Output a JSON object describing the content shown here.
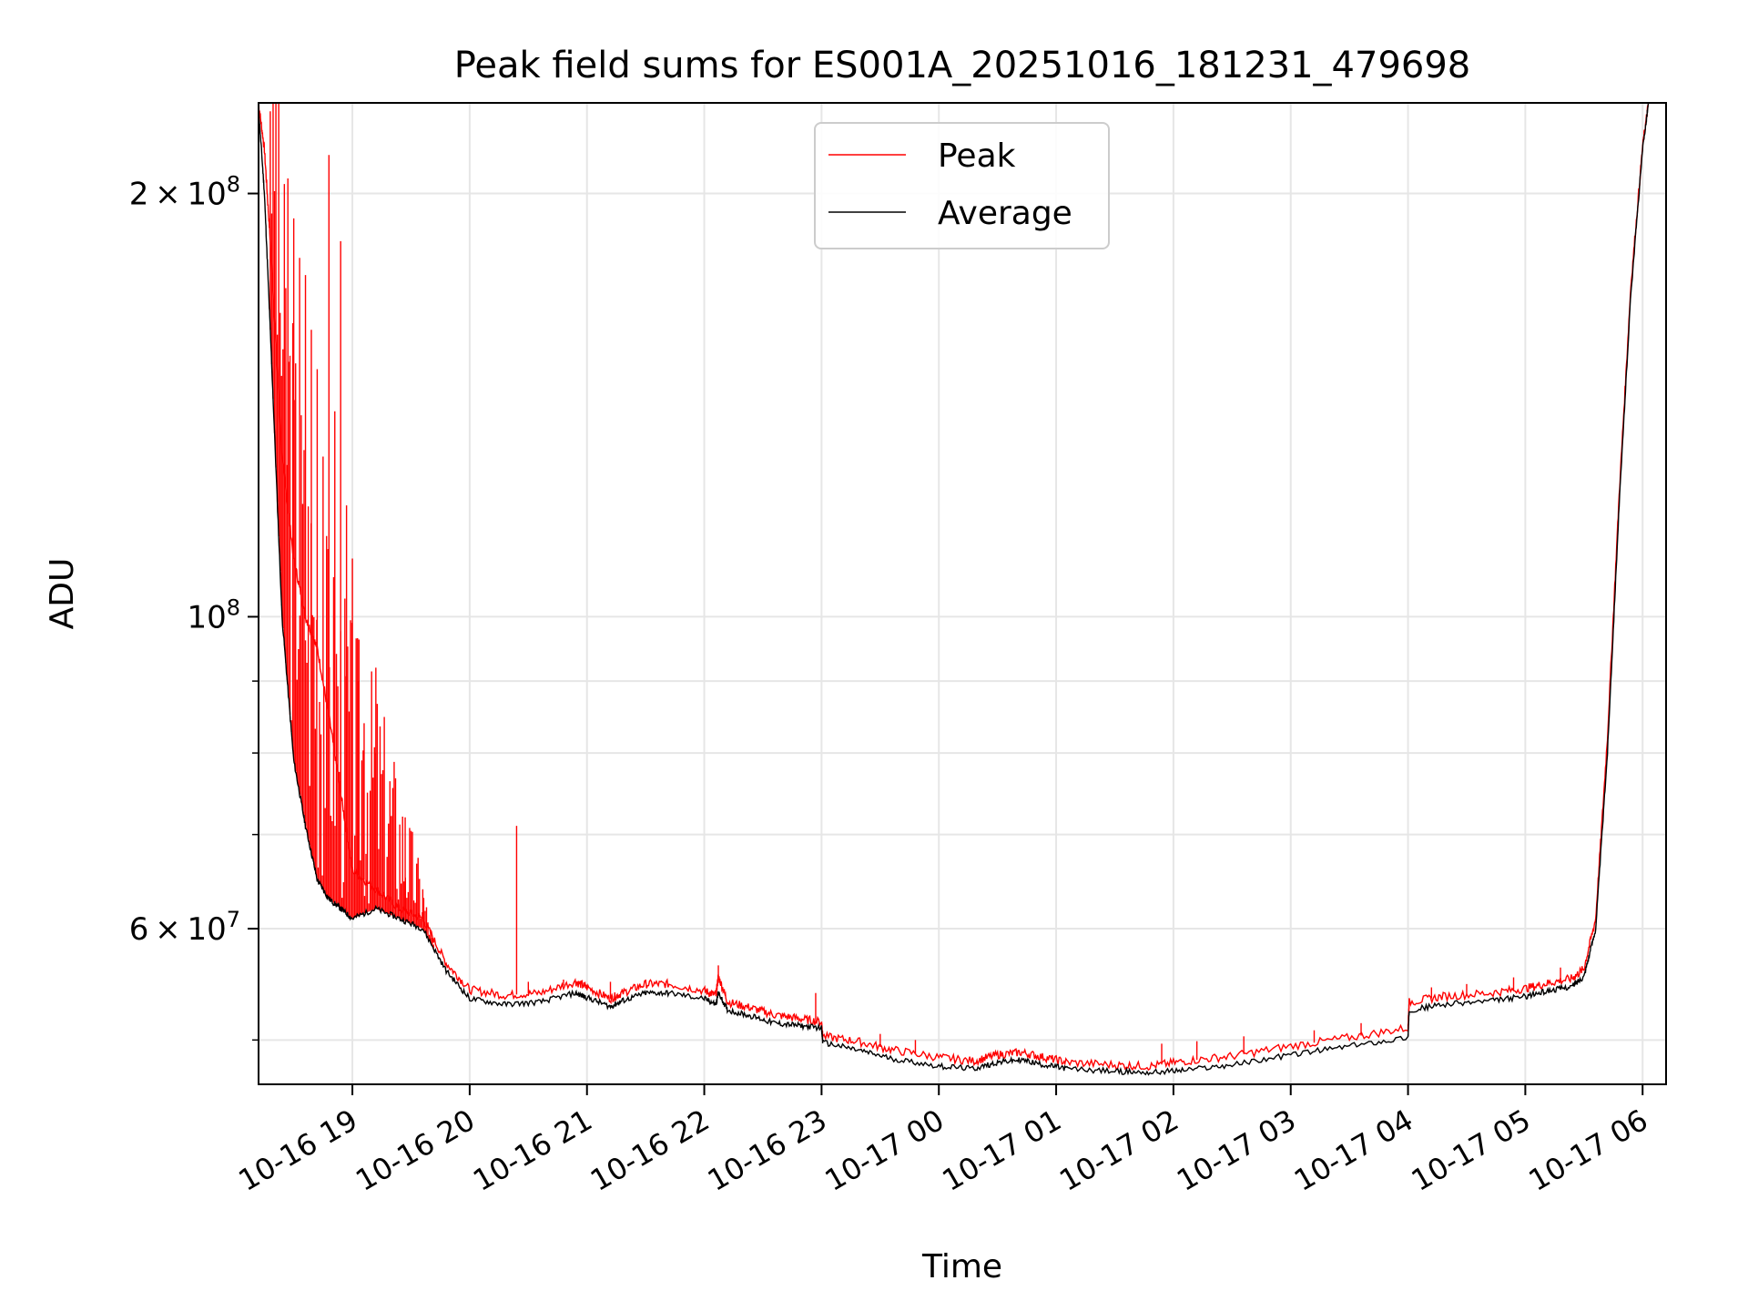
{
  "chart_data": {
    "type": "line",
    "title": "Peak field sums for ES001A_20251016_181231_479698",
    "xlabel": "Time",
    "ylabel": "ADU",
    "yscale": "log",
    "ylim": [
      46500000,
      232000000
    ],
    "xlim_hours": [
      18.2,
      30.2
    ],
    "x_ticks": [
      {
        "value": 19,
        "label": "10-16 19"
      },
      {
        "value": 20,
        "label": "10-16 20"
      },
      {
        "value": 21,
        "label": "10-16 21"
      },
      {
        "value": 22,
        "label": "10-16 22"
      },
      {
        "value": 23,
        "label": "10-16 23"
      },
      {
        "value": 24,
        "label": "10-17 00"
      },
      {
        "value": 25,
        "label": "10-17 01"
      },
      {
        "value": 26,
        "label": "10-17 02"
      },
      {
        "value": 27,
        "label": "10-17 03"
      },
      {
        "value": 28,
        "label": "10-17 04"
      },
      {
        "value": 29,
        "label": "10-17 05"
      },
      {
        "value": 30,
        "label": "10-17 06"
      }
    ],
    "y_major_ticks": [
      {
        "value": 200000000,
        "mantissa": "2",
        "base": "10",
        "exp": "8"
      },
      {
        "value": 100000000,
        "mantissa": "",
        "base": "10",
        "exp": "8"
      },
      {
        "value": 60000000,
        "mantissa": "6",
        "base": "10",
        "exp": "7"
      }
    ],
    "y_minor_grid": [
      50000000,
      70000000,
      80000000,
      90000000
    ],
    "legend": {
      "position": "upper-center",
      "entries": [
        "Peak",
        "Average"
      ]
    },
    "series": [
      {
        "name": "Average",
        "color": "#000000",
        "x": [
          18.2,
          18.25,
          18.3,
          18.4,
          18.5,
          18.6,
          18.7,
          18.8,
          18.9,
          19.0,
          19.2,
          19.4,
          19.6,
          19.8,
          20.0,
          20.3,
          20.6,
          20.9,
          21.0,
          21.2,
          21.3,
          21.5,
          21.7,
          22.0,
          22.1,
          22.12,
          22.2,
          22.4,
          22.6,
          22.8,
          23.0,
          23.01,
          23.3,
          23.6,
          24.0,
          24.3,
          24.5,
          24.7,
          24.9,
          25.1,
          25.5,
          25.8,
          26.1,
          26.5,
          27.0,
          27.5,
          28.0,
          28.01,
          28.3,
          28.7,
          29.0,
          29.2,
          29.4,
          29.5,
          29.6,
          29.7,
          29.8,
          29.9,
          30.0,
          30.05
        ],
        "values": [
          230000000,
          200000000,
          160000000,
          100000000,
          79000000,
          71000000,
          65000000,
          63000000,
          62000000,
          61000000,
          62000000,
          61000000,
          60000000,
          56000000,
          53500000,
          53000000,
          53200000,
          54000000,
          53600000,
          52800000,
          53300000,
          54000000,
          54000000,
          53500000,
          53000000,
          54000000,
          52500000,
          52000000,
          51400000,
          51200000,
          51000000,
          49800000,
          49200000,
          48500000,
          47900000,
          47700000,
          48200000,
          48400000,
          48000000,
          47700000,
          47500000,
          47400000,
          47600000,
          48000000,
          48800000,
          49500000,
          50200000,
          52500000,
          53000000,
          53300000,
          53700000,
          54200000,
          54600000,
          55500000,
          60000000,
          80000000,
          120000000,
          170000000,
          215000000,
          232000000
        ]
      },
      {
        "name": "Peak",
        "color": "#ff0000",
        "x": [
          18.2,
          18.25,
          18.3,
          18.4,
          18.5,
          18.6,
          18.7,
          18.8,
          18.9,
          19.0,
          19.2,
          19.4,
          19.6,
          19.8,
          20.0,
          20.3,
          20.6,
          20.9,
          21.0,
          21.2,
          21.3,
          21.5,
          21.7,
          22.0,
          22.1,
          22.12,
          22.2,
          22.4,
          22.6,
          22.8,
          23.0,
          23.01,
          23.3,
          23.6,
          24.0,
          24.3,
          24.5,
          24.7,
          24.9,
          25.1,
          25.5,
          25.8,
          26.1,
          26.5,
          27.0,
          27.5,
          28.0,
          28.01,
          28.3,
          28.7,
          29.0,
          29.2,
          29.4,
          29.5,
          29.6,
          29.7,
          29.8,
          29.9,
          30.0,
          30.05
        ],
        "values": [
          232000000,
          215000000,
          185000000,
          130000000,
          110000000,
          100000000,
          95000000,
          85000000,
          75000000,
          66000000,
          64000000,
          62000000,
          61000000,
          56700000,
          54300000,
          53800000,
          54000000,
          55000000,
          54500000,
          53500000,
          54000000,
          54800000,
          54800000,
          54200000,
          53800000,
          55500000,
          53200000,
          52700000,
          52100000,
          51800000,
          51500000,
          50300000,
          49900000,
          49200000,
          48600000,
          48300000,
          48800000,
          49000000,
          48600000,
          48200000,
          48000000,
          47900000,
          48300000,
          48700000,
          49500000,
          50200000,
          51000000,
          53200000,
          53700000,
          54000000,
          54400000,
          54900000,
          55300000,
          56200000,
          61000000,
          82000000,
          122000000,
          172000000,
          216000000,
          232000000
        ],
        "spikes": [
          {
            "x": 18.45,
            "value": 205000000
          },
          {
            "x": 18.5,
            "value": 192000000
          },
          {
            "x": 18.55,
            "value": 180000000
          },
          {
            "x": 18.6,
            "value": 175000000
          },
          {
            "x": 18.65,
            "value": 160000000
          },
          {
            "x": 18.7,
            "value": 150000000
          },
          {
            "x": 18.75,
            "value": 130000000
          },
          {
            "x": 18.8,
            "value": 213000000
          },
          {
            "x": 18.85,
            "value": 140000000
          },
          {
            "x": 18.9,
            "value": 185000000
          },
          {
            "x": 18.95,
            "value": 120000000
          },
          {
            "x": 19.0,
            "value": 110000000
          },
          {
            "x": 19.05,
            "value": 90000000
          },
          {
            "x": 19.1,
            "value": 84000000
          },
          {
            "x": 19.2,
            "value": 92000000
          },
          {
            "x": 19.45,
            "value": 72000000
          },
          {
            "x": 19.6,
            "value": 64000000
          },
          {
            "x": 20.4,
            "value": 71000000
          },
          {
            "x": 20.5,
            "value": 55000000
          },
          {
            "x": 20.8,
            "value": 55200000
          },
          {
            "x": 21.2,
            "value": 55000000
          },
          {
            "x": 22.12,
            "value": 56500000
          },
          {
            "x": 22.95,
            "value": 54000000
          },
          {
            "x": 23.5,
            "value": 50500000
          },
          {
            "x": 23.8,
            "value": 50000000
          },
          {
            "x": 25.9,
            "value": 49700000
          },
          {
            "x": 26.2,
            "value": 49900000
          },
          {
            "x": 26.6,
            "value": 50300000
          },
          {
            "x": 27.2,
            "value": 50800000
          },
          {
            "x": 27.6,
            "value": 51400000
          },
          {
            "x": 28.2,
            "value": 54500000
          },
          {
            "x": 28.5,
            "value": 54800000
          },
          {
            "x": 28.9,
            "value": 55400000
          },
          {
            "x": 29.3,
            "value": 56300000
          }
        ]
      }
    ]
  }
}
